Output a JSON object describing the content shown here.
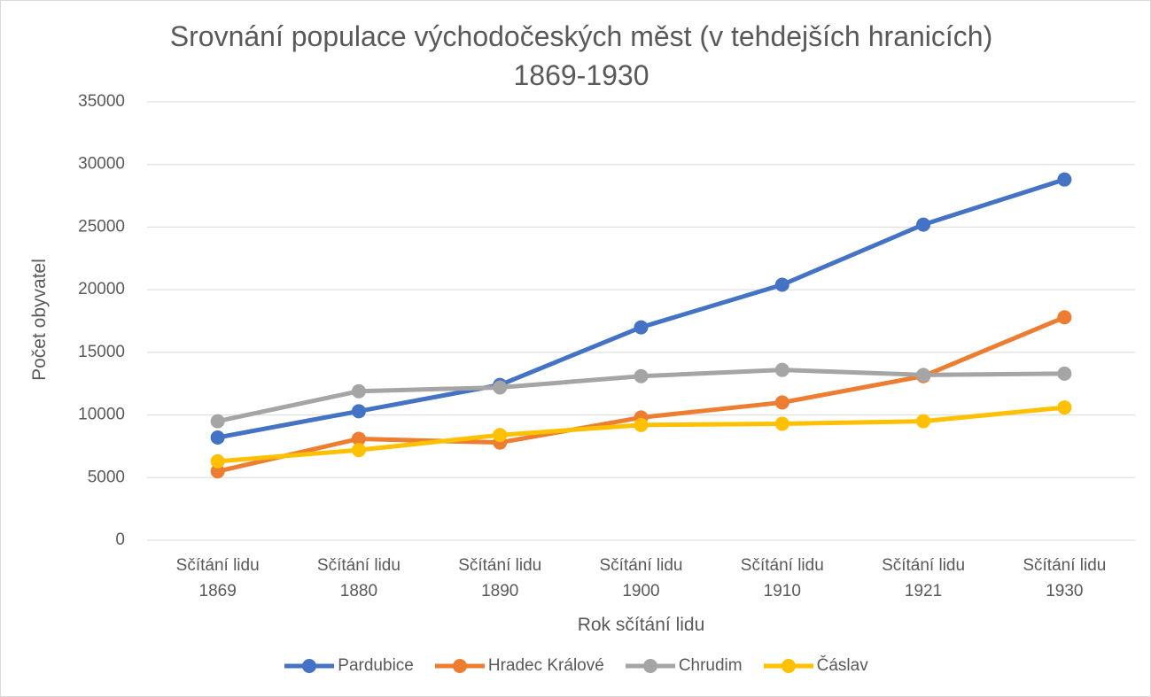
{
  "chart_data": {
    "type": "line",
    "title": "Srovnání populace východočeských měst (v tehdejších hranicích) 1869-1930",
    "x_label": "Rok sčítání lidu",
    "y_label": "Počet obyvatel",
    "categories": [
      "Sčítání lidu 1869",
      "Sčítání lidu 1880",
      "Sčítání lidu 1890",
      "Sčítání lidu 1900",
      "Sčítání lidu 1910",
      "Sčítání lidu 1921",
      "Sčítání lidu 1930"
    ],
    "series": [
      {
        "name": "Pardubice",
        "color": "#4472c4",
        "values": [
          8200,
          10300,
          12400,
          17000,
          20400,
          25200,
          28800
        ]
      },
      {
        "name": "Hradec Králové",
        "color": "#ed7d31",
        "values": [
          5500,
          8100,
          7800,
          9800,
          11000,
          13100,
          17800
        ]
      },
      {
        "name": "Chrudim",
        "color": "#a5a5a5",
        "values": [
          9500,
          11900,
          12200,
          13100,
          13600,
          13200,
          13300
        ]
      },
      {
        "name": "Čáslav",
        "color": "#ffc000",
        "values": [
          6300,
          7200,
          8400,
          9200,
          9300,
          9500,
          10600
        ]
      }
    ],
    "ylim": [
      0,
      35000
    ],
    "yticks": [
      0,
      5000,
      10000,
      15000,
      20000,
      25000,
      30000,
      35000
    ],
    "grid": true,
    "legend": "bottom"
  }
}
